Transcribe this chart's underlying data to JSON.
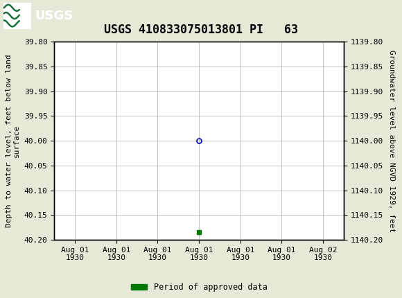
{
  "title": "USGS 410833075013801 PI   63",
  "left_ylabel": "Depth to water level, feet below land\nsurface",
  "right_ylabel": "Groundwater level above NGVD 1929, feet",
  "ylim_left": [
    39.8,
    40.2
  ],
  "ylim_right": [
    1140.2,
    1139.8
  ],
  "left_yticks": [
    39.8,
    39.85,
    39.9,
    39.95,
    40.0,
    40.05,
    40.1,
    40.15,
    40.2
  ],
  "right_yticks": [
    1140.2,
    1140.15,
    1140.1,
    1140.05,
    1140.0,
    1139.95,
    1139.9,
    1139.85,
    1139.8
  ],
  "right_ytick_labels": [
    "1140.20",
    "1140.15",
    "1140.10",
    "1140.05",
    "1140.00",
    "1139.95",
    "1139.90",
    "1139.85",
    "1139.80"
  ],
  "data_point_x": 3,
  "data_point_y": 40.0,
  "data_point_color": "#0000bb",
  "data_point_markersize": 5,
  "green_marker_x": 3,
  "green_marker_y": 40.185,
  "green_marker_color": "#007700",
  "background_color": "#e8e8d8",
  "plot_bg_color": "#ffffff",
  "header_bg_color": "#1a6e3c",
  "header_logo_bg": "#ffffff",
  "grid_color": "#aaaaaa",
  "tick_label_fontsize": 8,
  "title_fontsize": 12,
  "axis_label_fontsize": 8,
  "legend_label": "Period of approved data",
  "legend_color": "#007700",
  "xaxis_labels": [
    "Aug 01\n1930",
    "Aug 01\n1930",
    "Aug 01\n1930",
    "Aug 01\n1930",
    "Aug 01\n1930",
    "Aug 01\n1930",
    "Aug 02\n1930"
  ],
  "xlim": [
    -0.5,
    6.5
  ]
}
